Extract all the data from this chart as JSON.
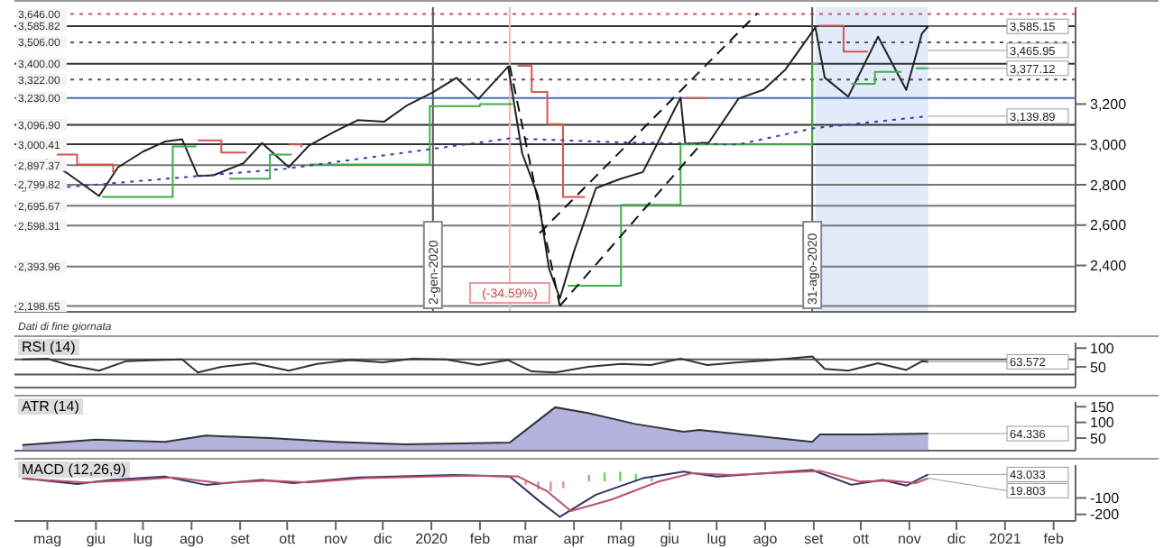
{
  "chart_data": [
    {
      "type": "line",
      "xlim": [
        "2019-04-10",
        "2021-02-15"
      ],
      "ylim": [
        2170,
        3680
      ],
      "xticks": [
        {
          "value": "2019-05-01",
          "label": null
        },
        {
          "value": "2019-06-01",
          "label": null
        },
        {
          "value": "2019-07-01",
          "label": null
        },
        {
          "value": "2019-08-01",
          "label": null
        },
        {
          "value": "2019-09-01",
          "label": null
        },
        {
          "value": "2019-10-01",
          "label": null
        },
        {
          "value": "2019-11-01",
          "label": null
        },
        {
          "value": "2019-12-01",
          "label": null
        },
        {
          "value": "2020-01-01",
          "label": null
        },
        {
          "value": "2020-02-01",
          "label": null
        },
        {
          "value": "2020-03-01",
          "label": null
        },
        {
          "value": "2020-04-01",
          "label": null
        },
        {
          "value": "2020-05-01",
          "label": null
        },
        {
          "value": "2020-06-01",
          "label": null
        },
        {
          "value": "2020-07-01",
          "label": null
        },
        {
          "value": "2020-08-01",
          "label": null
        },
        {
          "value": "2020-09-01",
          "label": null
        },
        {
          "value": "2020-10-01",
          "label": null
        },
        {
          "value": "2020-11-01",
          "label": null
        },
        {
          "value": "2020-12-01",
          "label": null
        },
        {
          "value": "2021-01-01",
          "label": null
        },
        {
          "value": "2021-02-01",
          "label": null
        }
      ],
      "yticks": [
        {
          "value": 2400,
          "label": "2,400"
        },
        {
          "value": 2600,
          "label": "2,600"
        },
        {
          "value": 2800,
          "label": "2,800"
        },
        {
          "value": 3000,
          "label": "3,000"
        },
        {
          "value": 3200,
          "label": "3,200"
        }
      ],
      "tick_labels": "y",
      "grid": false,
      "legend": false,
      "marker": "none",
      "series": [
        {
          "color": "#222222",
          "x": [
            "2019-04-15",
            "2019-05-01",
            "2019-05-15",
            "2019-06-03",
            "2019-06-15",
            "2019-07-01",
            "2019-07-15",
            "2019-07-26",
            "2019-08-05",
            "2019-08-15",
            "2019-09-03",
            "2019-09-15",
            "2019-10-02",
            "2019-10-15",
            "2019-11-01",
            "2019-11-15",
            "2019-12-02",
            "2019-12-16",
            "2020-01-02",
            "2020-01-17",
            "2020-01-31",
            "2020-02-19",
            "2020-02-28",
            "2020-03-09",
            "2020-03-16",
            "2020-03-23",
            "2020-04-01",
            "2020-04-15",
            "2020-05-01",
            "2020-05-15",
            "2020-06-08",
            "2020-06-11",
            "2020-06-26",
            "2020-07-15",
            "2020-07-31",
            "2020-08-14",
            "2020-09-02",
            "2020-09-08",
            "2020-09-23",
            "2020-10-12",
            "2020-10-30",
            "2020-11-09",
            "2020-11-13"
          ],
          "values": [
            2905,
            2923,
            2850,
            2744,
            2886,
            2964,
            3014,
            3025,
            2844,
            2847,
            2906,
            3007,
            2887,
            2995,
            3066,
            3120,
            3113,
            3191,
            3258,
            3330,
            3225,
            3386,
            2954,
            2746,
            2386,
            2237,
            2470,
            2783,
            2830,
            2863,
            3232,
            3002,
            3009,
            3227,
            3271,
            3372,
            3580,
            3331,
            3237,
            3534,
            3270,
            3550,
            3585
          ]
        },
        {
          "type": "step",
          "color": "#d9534f",
          "x": [
            "2019-05-07",
            "2019-05-20",
            "2019-06-12",
            "2019-06-13",
            "2019-08-05",
            "2019-08-20",
            "2019-09-05",
            "2019-09-06",
            "2019-10-02",
            "2019-10-10",
            "2019-10-11",
            "2020-02-25",
            "2020-03-05",
            "2020-03-15",
            "2020-03-25",
            "2020-04-08",
            "2020-04-09",
            "2020-06-11",
            "2020-06-25",
            "2020-06-26",
            "2020-09-04",
            "2020-09-20",
            "2020-10-05"
          ],
          "values": [
            2950,
            2900,
            2860,
            null,
            3020,
            2960,
            2960,
            null,
            3000,
            2985,
            null,
            3390,
            3260,
            3100,
            2740,
            2740,
            null,
            3230,
            3230,
            null,
            3588,
            3460,
            3465
          ]
        },
        {
          "type": "step",
          "color": "#3fae49",
          "x": [
            "2019-06-05",
            "2019-07-20",
            "2019-08-04",
            "2019-08-05",
            "2019-08-25",
            "2019-09-20",
            "2019-10-04",
            "2019-10-05",
            "2019-10-15",
            "2019-12-31",
            "2020-02-01",
            "2020-02-23",
            "2020-02-24",
            "2020-03-28",
            "2020-05-01",
            "2020-06-08",
            "2020-06-15",
            "2020-08-31",
            "2020-09-04",
            "2020-09-05",
            "2020-09-25",
            "2020-10-10",
            "2020-10-27",
            "2020-10-28",
            "2020-11-05",
            "2020-11-13"
          ],
          "values": [
            2740,
            2990,
            2990,
            null,
            2830,
            2950,
            2950,
            null,
            2900,
            3190,
            3200,
            3200,
            null,
            2300,
            2700,
            3000,
            3000,
            3400,
            3400,
            null,
            3300,
            3360,
            3360,
            null,
            3377,
            3377
          ]
        },
        {
          "color": "#3b3bb3",
          "line_style": "dotted",
          "x": [
            "2019-04-15",
            "2019-10-01",
            "2020-02-20",
            "2020-05-01",
            "2020-07-15",
            "2020-09-01",
            "2020-11-13"
          ],
          "values": [
            2770,
            2880,
            3030,
            3010,
            3000,
            3080,
            3140
          ]
        },
        {
          "color": "#111111",
          "line_style": "dashed",
          "x": [
            "2020-02-20",
            "2020-03-23"
          ],
          "values": [
            3390,
            2200
          ]
        },
        {
          "color": "#111111",
          "line_style": "dashed",
          "x": [
            "2020-03-23",
            "2020-06-22"
          ],
          "values": [
            2200,
            3010
          ]
        },
        {
          "color": "#111111",
          "line_style": "dashed",
          "x": [
            "2020-03-10",
            "2020-07-27"
          ],
          "values": [
            2560,
            3650
          ]
        }
      ],
      "ref_lines": [
        {
          "axis": "y",
          "value": 3646,
          "label": "3,646.00",
          "color": "#d9534f",
          "line_style": "dotted"
        },
        {
          "axis": "y",
          "value": 3585.82,
          "label": "3,585.82",
          "color": "#333333",
          "line_style": "solid"
        },
        {
          "axis": "y",
          "value": 3506,
          "label": "3,506.00",
          "color": "#555555",
          "line_style": "dotted"
        },
        {
          "axis": "y",
          "value": 3400,
          "label": "3,400.00",
          "color": "#333333",
          "line_style": "solid"
        },
        {
          "axis": "y",
          "value": 3322,
          "label": "3,322.00",
          "color": "#555555",
          "line_style": "dotted"
        },
        {
          "axis": "y",
          "value": 3230,
          "label": "3,230.00",
          "color": "#4a6fb5",
          "line_style": "solid"
        },
        {
          "axis": "y",
          "value": 3096.9,
          "label": "3,096.90",
          "color": "#333333",
          "line_style": "solid"
        },
        {
          "axis": "y",
          "value": 3000.41,
          "label": "3,000.41",
          "color": "#333333",
          "line_style": "solid"
        },
        {
          "axis": "y",
          "value": 2897.37,
          "label": "2,897.37",
          "color": "#777777",
          "line_style": "solid"
        },
        {
          "axis": "y",
          "value": 2799.82,
          "label": "2,799.82",
          "color": "#777777",
          "line_style": "solid"
        },
        {
          "axis": "y",
          "value": 2695.67,
          "label": "2,695.67",
          "color": "#777777",
          "line_style": "solid"
        },
        {
          "axis": "y",
          "value": 2598.31,
          "label": "2,598.31",
          "color": "#777777",
          "line_style": "solid"
        },
        {
          "axis": "y",
          "value": 2393.96,
          "label": "2,393.96",
          "color": "#777777",
          "line_style": "solid"
        },
        {
          "axis": "y",
          "value": 2198.65,
          "label": "2,198.65",
          "color": "#777777",
          "line_style": "solid"
        },
        {
          "axis": "x",
          "value": "2020-01-02",
          "label": "2-gen-2020",
          "color": "#555555",
          "line_style": "solid"
        },
        {
          "axis": "x",
          "value": "2020-08-31",
          "label": "31-ago-2020",
          "color": "#555555",
          "line_style": "solid"
        },
        {
          "axis": "x",
          "value": "2020-02-20",
          "label": "(-34.59%)",
          "color": "#f4b6b6",
          "line_style": "solid"
        }
      ],
      "bands": [
        {
          "axis": "x",
          "from": "2020-09-02",
          "to": "2020-11-13",
          "color": "#dbe6f7"
        }
      ],
      "annotations": [
        {
          "text": "3,585.15",
          "x": "2020-11-13",
          "y": 3585.15
        },
        {
          "text": "3,465.95",
          "x": "2020-11-13",
          "y": 3465.95
        },
        {
          "text": "3,377.12",
          "x": "2020-11-13",
          "y": 3377.12
        },
        {
          "text": "3,139.89",
          "x": "2020-11-13",
          "y": 3139.89
        },
        "Dati di fine giornata"
      ]
    },
    {
      "type": "line",
      "title": "RSI (14)",
      "xlim": [
        "2019-04-10",
        "2021-02-15"
      ],
      "ylim": [
        -5,
        115
      ],
      "xticks": [
        {
          "value": "2019-05-01",
          "label": null
        },
        {
          "value": "2019-06-01",
          "label": null
        },
        {
          "value": "2019-07-01",
          "label": null
        },
        {
          "value": "2019-08-01",
          "label": null
        },
        {
          "value": "2019-09-01",
          "label": null
        },
        {
          "value": "2019-10-01",
          "label": null
        },
        {
          "value": "2019-11-01",
          "label": null
        },
        {
          "value": "2019-12-01",
          "label": null
        },
        {
          "value": "2020-01-01",
          "label": null
        },
        {
          "value": "2020-02-01",
          "label": null
        },
        {
          "value": "2020-03-01",
          "label": null
        },
        {
          "value": "2020-04-01",
          "label": null
        },
        {
          "value": "2020-05-01",
          "label": null
        },
        {
          "value": "2020-06-01",
          "label": null
        },
        {
          "value": "2020-07-01",
          "label": null
        },
        {
          "value": "2020-08-01",
          "label": null
        },
        {
          "value": "2020-09-01",
          "label": null
        },
        {
          "value": "2020-10-01",
          "label": null
        },
        {
          "value": "2020-11-01",
          "label": null
        },
        {
          "value": "2020-12-01",
          "label": null
        },
        {
          "value": "2021-01-01",
          "label": null
        },
        {
          "value": "2021-02-01",
          "label": null
        }
      ],
      "yticks": [
        50,
        100
      ],
      "tick_labels": "y",
      "legend": false,
      "marker": "none",
      "series": [
        {
          "color": "#333333",
          "x": [
            "2019-04-15",
            "2019-05-01",
            "2019-05-15",
            "2019-06-03",
            "2019-06-20",
            "2019-07-10",
            "2019-07-26",
            "2019-08-05",
            "2019-08-20",
            "2019-09-10",
            "2019-10-02",
            "2019-10-20",
            "2019-11-10",
            "2019-12-01",
            "2019-12-20",
            "2020-01-10",
            "2020-01-31",
            "2020-02-19",
            "2020-03-05",
            "2020-03-20",
            "2020-04-10",
            "2020-05-01",
            "2020-05-20",
            "2020-06-08",
            "2020-06-25",
            "2020-07-15",
            "2020-08-05",
            "2020-08-31",
            "2020-09-08",
            "2020-09-23",
            "2020-10-12",
            "2020-10-30",
            "2020-11-09",
            "2020-11-13"
          ],
          "values": [
            70,
            72,
            55,
            40,
            65,
            68,
            70,
            35,
            50,
            60,
            40,
            58,
            68,
            62,
            72,
            70,
            55,
            68,
            38,
            35,
            50,
            58,
            55,
            72,
            55,
            62,
            68,
            78,
            45,
            40,
            60,
            42,
            65,
            63.572
          ]
        }
      ],
      "ref_lines": [
        {
          "axis": "y",
          "value": 70,
          "color": "#555555"
        },
        {
          "axis": "y",
          "value": 30,
          "color": "#555555"
        }
      ],
      "annotations": [
        {
          "text": "63.572",
          "x": "2020-11-13",
          "y": 63.572
        }
      ]
    },
    {
      "type": "area",
      "title": "ATR (14)",
      "xlim": [
        "2019-04-10",
        "2021-02-15"
      ],
      "ylim": [
        10,
        165
      ],
      "xticks": [
        {
          "value": "2019-05-01",
          "label": null
        },
        {
          "value": "2019-06-01",
          "label": null
        },
        {
          "value": "2019-07-01",
          "label": null
        },
        {
          "value": "2019-08-01",
          "label": null
        },
        {
          "value": "2019-09-01",
          "label": null
        },
        {
          "value": "2019-10-01",
          "label": null
        },
        {
          "value": "2019-11-01",
          "label": null
        },
        {
          "value": "2019-12-01",
          "label": null
        },
        {
          "value": "2020-01-01",
          "label": null
        },
        {
          "value": "2020-02-01",
          "label": null
        },
        {
          "value": "2020-03-01",
          "label": null
        },
        {
          "value": "2020-04-01",
          "label": null
        },
        {
          "value": "2020-05-01",
          "label": null
        },
        {
          "value": "2020-06-01",
          "label": null
        },
        {
          "value": "2020-07-01",
          "label": null
        },
        {
          "value": "2020-08-01",
          "label": null
        },
        {
          "value": "2020-09-01",
          "label": null
        },
        {
          "value": "2020-10-01",
          "label": null
        },
        {
          "value": "2020-11-01",
          "label": null
        },
        {
          "value": "2020-12-01",
          "label": null
        },
        {
          "value": "2021-01-01",
          "label": null
        },
        {
          "value": "2021-02-01",
          "label": null
        }
      ],
      "yticks": [
        50,
        100,
        150
      ],
      "tick_labels": "y",
      "legend": false,
      "marker": "none",
      "series": [
        {
          "color": "#8080c8",
          "x": [
            "2019-04-15",
            "2019-06-01",
            "2019-07-15",
            "2019-08-10",
            "2019-09-20",
            "2019-11-01",
            "2019-12-15",
            "2020-02-20",
            "2020-03-05",
            "2020-03-20",
            "2020-04-10",
            "2020-05-10",
            "2020-06-10",
            "2020-06-20",
            "2020-08-31",
            "2020-09-05",
            "2020-10-05",
            "2020-11-13"
          ],
          "values": [
            28,
            45,
            38,
            58,
            50,
            38,
            30,
            36,
            90,
            148,
            130,
            95,
            70,
            76,
            38,
            62,
            62,
            64.336
          ]
        }
      ],
      "annotations": [
        {
          "text": "64.336",
          "x": "2020-11-13",
          "y": 64.336
        }
      ]
    },
    {
      "type": "line",
      "title": "MACD (12,26,9)",
      "xlim": [
        "2019-04-10",
        "2021-02-15"
      ],
      "ylim": [
        -240,
        100
      ],
      "yticks": [
        -200,
        -100
      ],
      "xticks": [
        {
          "value": "2019-05-01",
          "label": "mag"
        },
        {
          "value": "2019-06-01",
          "label": "giu"
        },
        {
          "value": "2019-07-01",
          "label": "lug"
        },
        {
          "value": "2019-08-01",
          "label": "ago"
        },
        {
          "value": "2019-09-01",
          "label": "set"
        },
        {
          "value": "2019-10-01",
          "label": "ott"
        },
        {
          "value": "2019-11-01",
          "label": "nov"
        },
        {
          "value": "2019-12-01",
          "label": "dic"
        },
        {
          "value": "2020-01-01",
          "label": "2020"
        },
        {
          "value": "2020-02-01",
          "label": "feb"
        },
        {
          "value": "2020-03-01",
          "label": "mar"
        },
        {
          "value": "2020-04-01",
          "label": "apr"
        },
        {
          "value": "2020-05-01",
          "label": "mag"
        },
        {
          "value": "2020-06-01",
          "label": "giu"
        },
        {
          "value": "2020-07-01",
          "label": "lug"
        },
        {
          "value": "2020-08-01",
          "label": "ago"
        },
        {
          "value": "2020-09-01",
          "label": "set"
        },
        {
          "value": "2020-10-01",
          "label": "ott"
        },
        {
          "value": "2020-11-01",
          "label": "nov"
        },
        {
          "value": "2020-12-01",
          "label": "dic"
        },
        {
          "value": "2021-01-01",
          "label": "2021"
        },
        {
          "value": "2021-02-01",
          "label": "feb"
        }
      ],
      "legend": false,
      "marker": "none",
      "series": [
        {
          "color": "#333366",
          "x": [
            "2019-04-15",
            "2019-05-20",
            "2019-06-10",
            "2019-07-15",
            "2019-08-10",
            "2019-09-15",
            "2019-10-05",
            "2019-11-15",
            "2020-01-15",
            "2020-02-20",
            "2020-03-10",
            "2020-03-23",
            "2020-04-15",
            "2020-05-15",
            "2020-06-10",
            "2020-07-01",
            "2020-08-31",
            "2020-09-25",
            "2020-10-15",
            "2020-10-30",
            "2020-11-13"
          ],
          "values": [
            20,
            -15,
            10,
            30,
            -20,
            10,
            -10,
            25,
            40,
            30,
            -120,
            -215,
            -80,
            20,
            60,
            30,
            70,
            -20,
            10,
            -25,
            43.033
          ]
        },
        {
          "color": "#c0506e",
          "x": [
            "2019-04-15",
            "2019-05-25",
            "2019-06-20",
            "2019-07-20",
            "2019-08-20",
            "2019-09-20",
            "2019-10-15",
            "2019-11-20",
            "2020-01-20",
            "2020-02-25",
            "2020-03-15",
            "2020-03-30",
            "2020-04-25",
            "2020-05-25",
            "2020-06-15",
            "2020-07-10",
            "2020-09-05",
            "2020-09-30",
            "2020-10-20",
            "2020-11-05",
            "2020-11-13"
          ],
          "values": [
            18,
            -5,
            5,
            25,
            -10,
            5,
            -5,
            20,
            35,
            32,
            -60,
            -180,
            -110,
            0,
            50,
            40,
            65,
            0,
            5,
            -10,
            19.803
          ]
        },
        {
          "type": "bar",
          "color": "#e08a8a",
          "x": [
            "2020-03-02",
            "2020-03-10",
            "2020-03-18",
            "2020-03-26"
          ],
          "values": [
            -20,
            -50,
            -60,
            -40
          ]
        },
        {
          "type": "bar",
          "color": "#6cc96c",
          "x": [
            "2020-04-10",
            "2020-04-20",
            "2020-04-30",
            "2020-05-10",
            "2020-05-20"
          ],
          "values": [
            40,
            55,
            60,
            45,
            30
          ]
        }
      ],
      "annotations": [
        {
          "text": "43.033",
          "x": "2020-11-13",
          "y": 43.033
        },
        {
          "text": "19.803",
          "x": "2020-11-13",
          "y": 19.803
        }
      ]
    }
  ]
}
